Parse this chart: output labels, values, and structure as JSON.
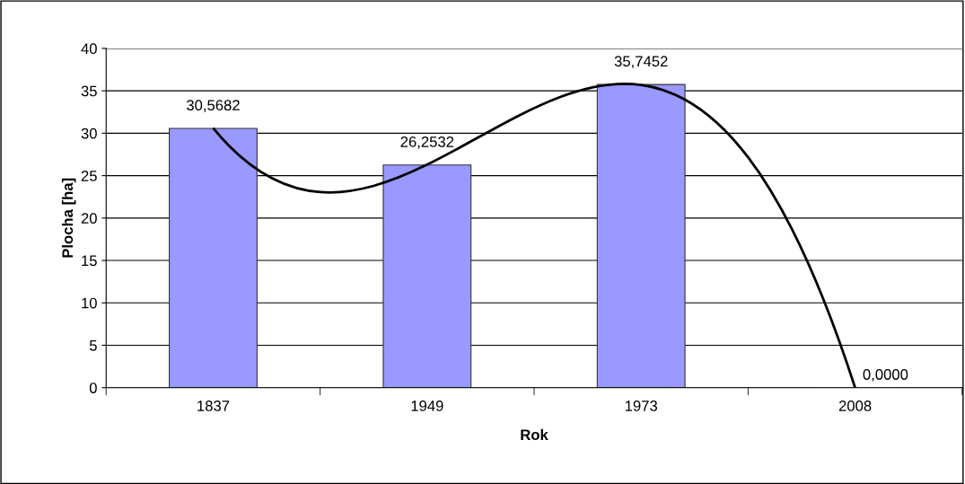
{
  "chart_data": {
    "type": "bar",
    "xlabel": "Rok",
    "ylabel": "Plocha [ha]",
    "categories": [
      "1837",
      "1949",
      "1973",
      "2008"
    ],
    "series": [
      {
        "color": "#9999ff",
        "values": [
          30.5682,
          26.2532,
          35.7452,
          0.0
        ],
        "value_labels": [
          "30,5682",
          "26,2532",
          "35,7452",
          "0,0000"
        ]
      },
      {
        "type": "line",
        "color": "#000000",
        "values": [
          30.6,
          26.3,
          35.7,
          0.0
        ]
      }
    ],
    "ylim": [
      0,
      40
    ],
    "yticks": [
      0,
      5,
      10,
      15,
      20,
      25,
      30,
      35,
      40
    ],
    "grid": "y",
    "legend": false
  }
}
